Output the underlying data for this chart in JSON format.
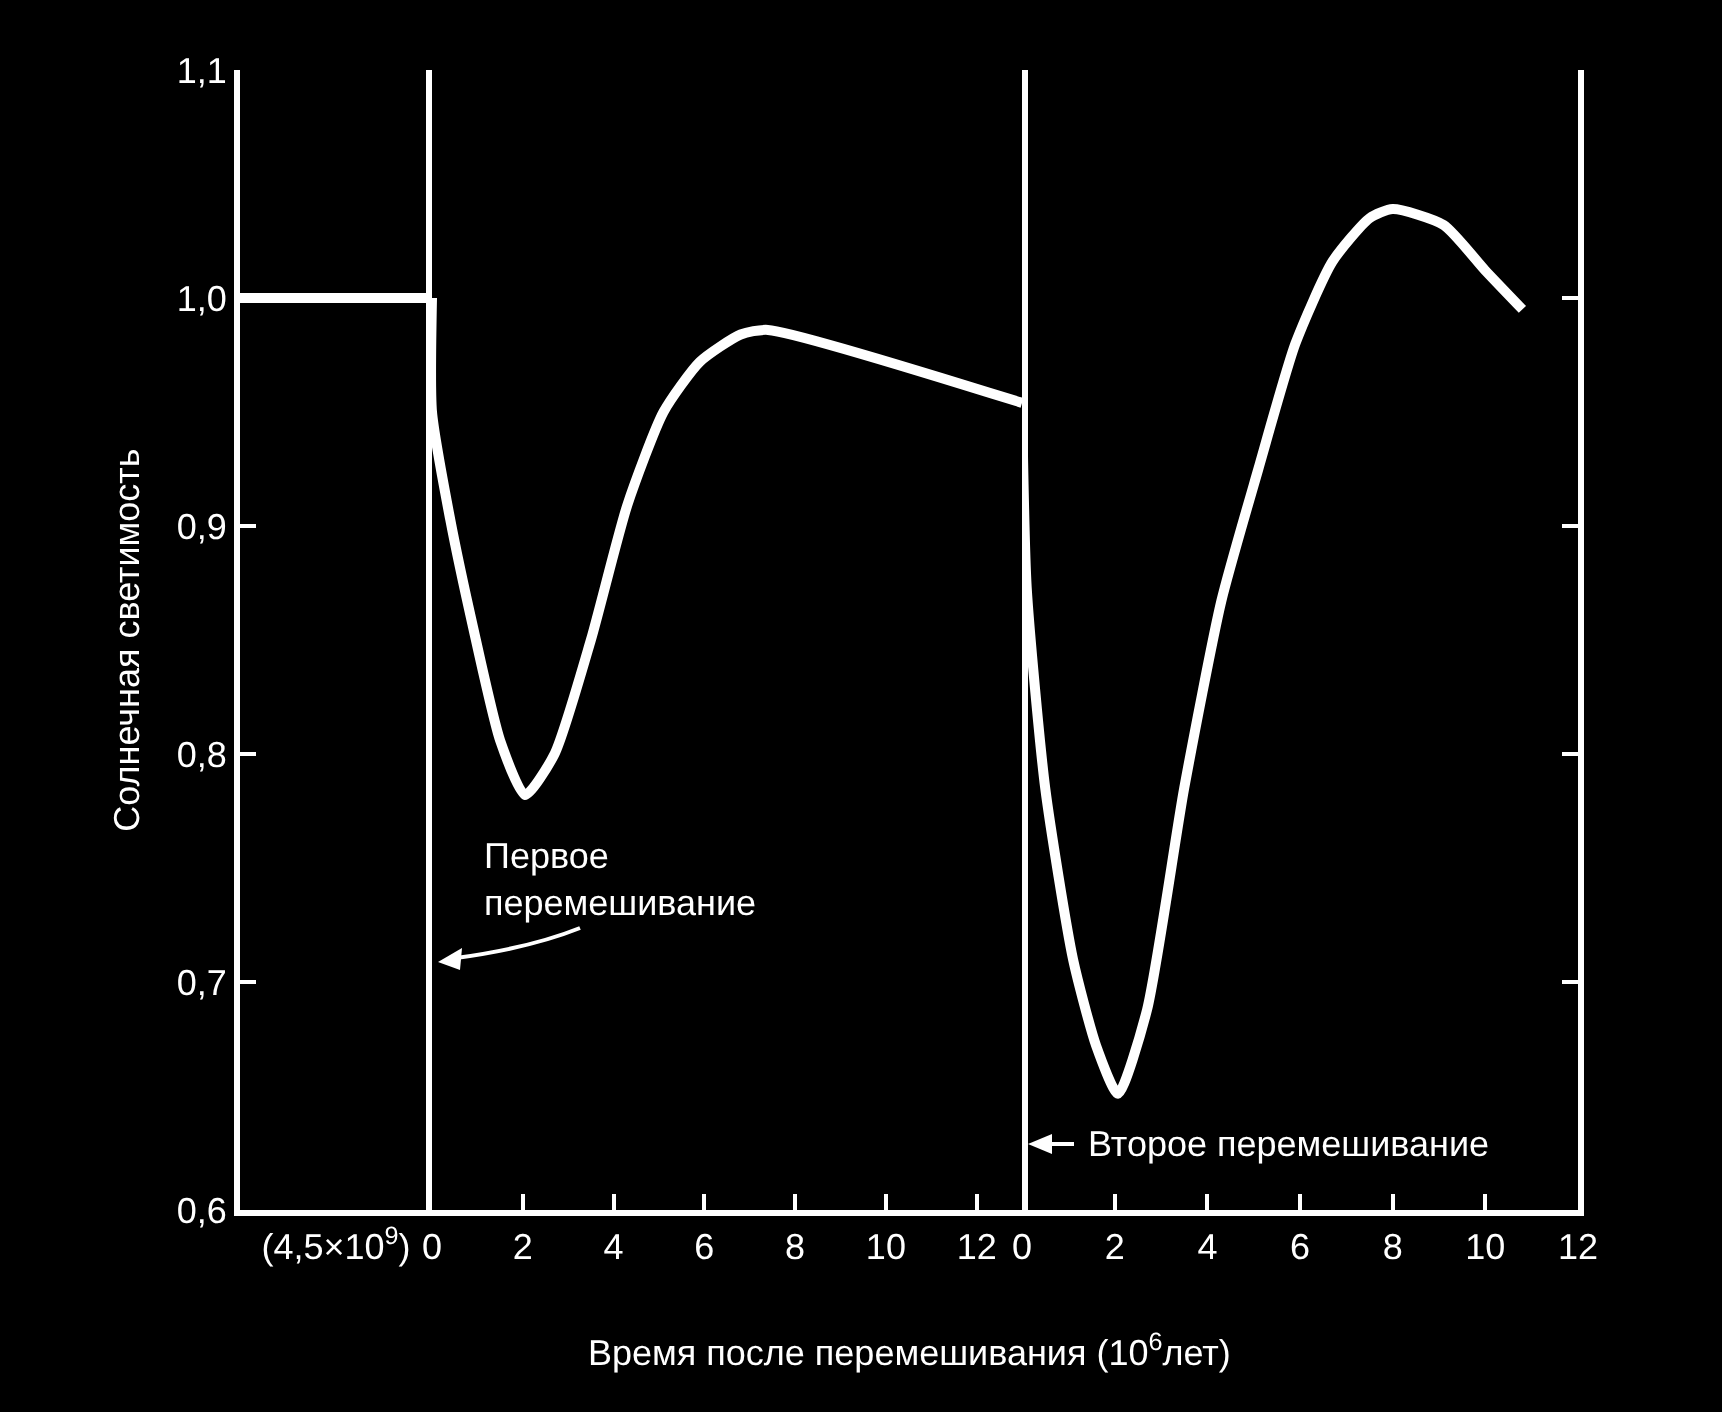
{
  "chart_data": [
    {
      "type": "line",
      "color": "#ffffff",
      "categories": [
        null,
        "(4,5×10$^{9}$)",
        null
      ],
      "values": [
        1.0,
        1.0,
        1.0
      ],
      "ylim": [
        0.6,
        1.1
      ],
      "yticks": [
        {
          "value": 0.6,
          "label": "0,6"
        },
        {
          "value": 0.7,
          "label": "0,7"
        },
        {
          "value": 0.8,
          "label": "0,8"
        },
        {
          "value": 0.9,
          "label": "0,9"
        },
        {
          "value": 1.0,
          "label": "1,0"
        },
        {
          "value": 1.1,
          "label": "1,1"
        }
      ],
      "ylabel": "Солнечная светимость"
    },
    {
      "type": "line",
      "color": "#ffffff",
      "tick_labels": "x",
      "xlabel": "Время после перемешивания (10$^{6}$лет)",
      "x": [
        0,
        0,
        0.4,
        0.9,
        1.5,
        2.05,
        2.7,
        3.5,
        4.3,
        5.1,
        5.9,
        6.8,
        7.4,
        13
      ],
      "values": [
        1.0,
        0.95,
        0.903,
        0.856,
        0.806,
        0.782,
        0.8,
        0.85,
        0.909,
        0.95,
        0.972,
        0.984,
        0.986,
        0.954
      ],
      "xlim": [
        0,
        13
      ],
      "xticks": [
        0,
        2,
        4,
        6,
        8,
        10,
        12
      ],
      "ylim": [
        0.6,
        1.1
      ],
      "annotations": [
        "Первое\nперемешивание"
      ]
    },
    {
      "type": "line",
      "color": "#ffffff",
      "tick_labels": "x",
      "x": [
        0,
        0.1,
        0.5,
        1.1,
        1.6,
        2.07,
        2.7,
        3.5,
        4.3,
        5.1,
        5.9,
        6.7,
        7.5,
        8.0,
        9.1,
        10.0,
        10.8
      ],
      "values": [
        0.954,
        0.873,
        0.785,
        0.71,
        0.672,
        0.651,
        0.688,
        0.785,
        0.867,
        0.925,
        0.98,
        1.016,
        1.035,
        1.039,
        1.032,
        1.012,
        0.995
      ],
      "xlim": [
        0,
        12
      ],
      "xticks": [
        0,
        2,
        4,
        6,
        8,
        10,
        12
      ],
      "ylim": [
        0.6,
        1.1
      ],
      "yticks": [
        0.6,
        0.7,
        0.8,
        0.9,
        1.0,
        1.1
      ],
      "annotations": [
        "Второе перемешивание"
      ]
    }
  ]
}
